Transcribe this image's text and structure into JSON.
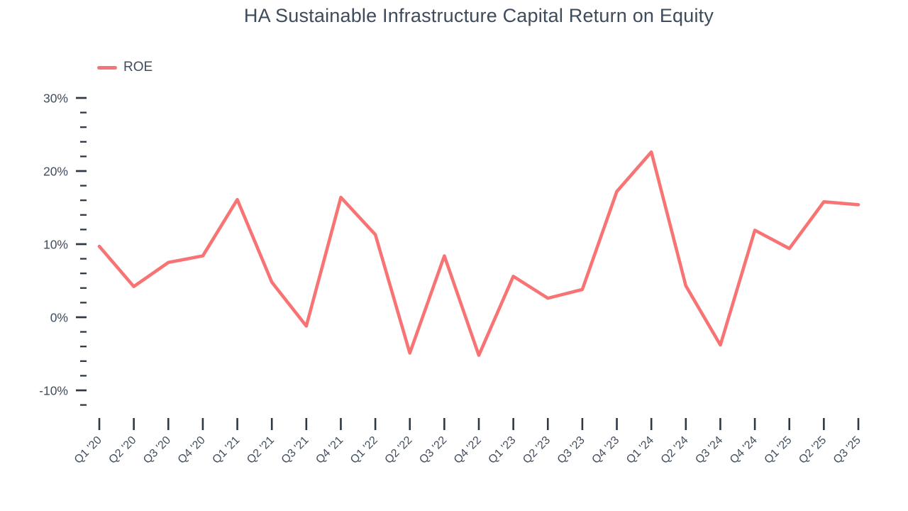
{
  "page": {
    "background": "#ffffff"
  },
  "chart_data": {
    "type": "line",
    "title": "HA Sustainable Infrastructure Capital Return on Equity",
    "legend": [
      {
        "label": "ROE",
        "color": "#f87474"
      }
    ],
    "legend_position": "top-left",
    "categories": [
      "Q1 '20",
      "Q2 '20",
      "Q3 '20",
      "Q4 '20",
      "Q1 '21",
      "Q2 '21",
      "Q3 '21",
      "Q4 '21",
      "Q1 '22",
      "Q2 '22",
      "Q3 '22",
      "Q4 '22",
      "Q1 '23",
      "Q2 '23",
      "Q3 '23",
      "Q4 '23",
      "Q1 '24",
      "Q2 '24",
      "Q3 '24",
      "Q4 '24",
      "Q1 '25",
      "Q2 '25",
      "Q3 '25"
    ],
    "series": [
      {
        "name": "ROE",
        "values": [
          9.7,
          4.2,
          7.5,
          8.4,
          16.1,
          4.8,
          -1.2,
          16.4,
          11.3,
          -4.9,
          8.4,
          -5.2,
          5.6,
          2.6,
          3.8,
          17.2,
          22.6,
          4.3,
          -3.8,
          11.9,
          9.4,
          15.8,
          15.4
        ]
      }
    ],
    "xlabel": "",
    "ylabel": "",
    "y_unit": "%",
    "ylim": [
      -13,
      31
    ],
    "y_major_ticks": [
      -10,
      0,
      10,
      20,
      30
    ],
    "y_major_tick_labels": [
      "-10%",
      "0%",
      "10%",
      "20%",
      "30%"
    ],
    "y_minor_tick_step": 2,
    "y_minor_tick_min": -12,
    "y_minor_tick_max": 30,
    "grid": "off",
    "colors": {
      "line": "#f87474",
      "text": "#414d5c",
      "tick": "#2e3945"
    }
  }
}
